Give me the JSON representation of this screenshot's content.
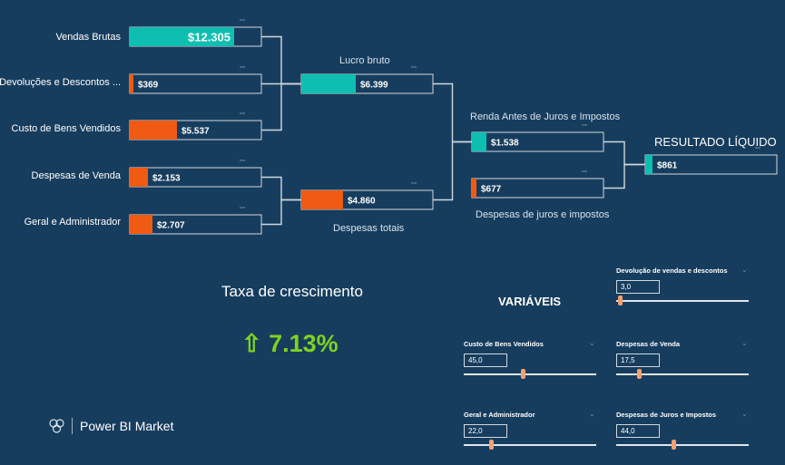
{
  "tree": {
    "nodes": [
      {
        "id": "vendas",
        "value_label": "$12.305",
        "value": 12305,
        "color": "#0ebfb1",
        "label": "Vendas Brutas"
      },
      {
        "id": "devol",
        "value_label": "$369",
        "value": 369,
        "color": "#f15a12",
        "label": "Devoluções e Descontos ..."
      },
      {
        "id": "custo",
        "value_label": "$5.537",
        "value": 5537,
        "color": "#f15a12",
        "label": "Custo de Bens Vendidos"
      },
      {
        "id": "desp_venda",
        "value_label": "$2.153",
        "value": 2153,
        "color": "#f15a12",
        "label": "Despesas de Venda"
      },
      {
        "id": "geral",
        "value_label": "$2.707",
        "value": 2707,
        "color": "#f15a12",
        "label": "Geral e Administrador"
      },
      {
        "id": "lucro",
        "value_label": "$6.399",
        "value": 6399,
        "color": "#0ebfb1",
        "label": "Lucro bruto"
      },
      {
        "id": "desp_tot",
        "value_label": "$4.860",
        "value": 4860,
        "color": "#f15a12",
        "label": "Despesas totais"
      },
      {
        "id": "renda",
        "value_label": "$1.538",
        "value": 1538,
        "color": "#0ebfb1",
        "label": "Renda Antes de Juros e Impostos"
      },
      {
        "id": "juros",
        "value_label": "$677",
        "value": 677,
        "color": "#f15a12",
        "label": "Despesas de juros e impostos"
      },
      {
        "id": "resultado",
        "value_label": "$861",
        "value": 861,
        "color": "#0ebfb1",
        "label": "RESULTADO LÍQUIDO"
      }
    ]
  },
  "growth": {
    "title": "Taxa de crescimento",
    "value": "⇧ 7.13%",
    "color": "#7ed321"
  },
  "vars_title": "VARIÁVEIS",
  "sliders": [
    {
      "id": "devolucao",
      "name": "Devolução de vendas e descontos",
      "value_label": "3,0",
      "value": 3.0,
      "fraction": 0.03
    },
    {
      "id": "custo",
      "name": "Custo de Bens Vendidos",
      "value_label": "45,0",
      "value": 45.0,
      "fraction": 0.45
    },
    {
      "id": "despvenda",
      "name": "Despesas de Venda",
      "value_label": "17,5",
      "value": 17.5,
      "fraction": 0.175
    },
    {
      "id": "geral",
      "name": "Geral e Administrador",
      "value_label": "22,0",
      "value": 22.0,
      "fraction": 0.22
    },
    {
      "id": "juros",
      "name": "Despesas de Juros e Impostos",
      "value_label": "44,0",
      "value": 44.0,
      "fraction": 0.44
    }
  ],
  "brand": {
    "name": "Power BI Market",
    "icon": "power-bi-market-logo-icon"
  },
  "colors": {
    "background": "#173d5e",
    "positive": "#0ebfb1",
    "negative": "#f15a12",
    "connector": "#cfd8df",
    "thumb": "#f4a070"
  }
}
